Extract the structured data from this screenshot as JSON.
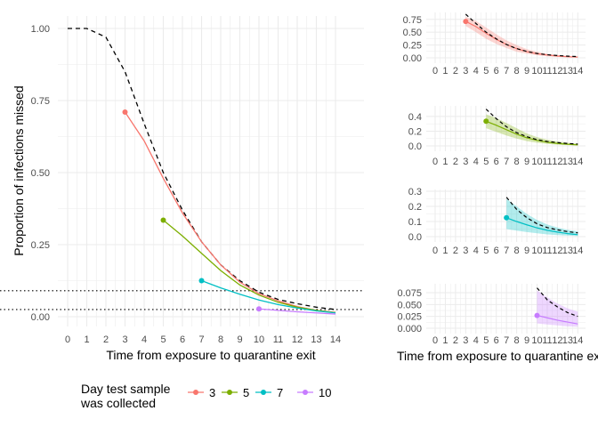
{
  "chart_data": [
    {
      "type": "line",
      "panel": "main",
      "xlabel": "Time from exposure to quarantine exit",
      "ylabel": "Proportion of infections missed",
      "xlim": [
        0,
        14
      ],
      "ylim": [
        0,
        1
      ],
      "x_ticks": [
        0,
        1,
        2,
        3,
        4,
        5,
        6,
        7,
        8,
        9,
        10,
        11,
        12,
        13,
        14
      ],
      "y_ticks": [
        0,
        0.25,
        0.5,
        0.75,
        1.0
      ],
      "y_tick_labels": [
        "0.00",
        "0.25",
        "0.50",
        "0.75",
        "1.00"
      ],
      "grid": true,
      "baseline": {
        "style": "dashed",
        "x": [
          0,
          1,
          2,
          3,
          4,
          5,
          6,
          7,
          8,
          9,
          10,
          11,
          12,
          13,
          14
        ],
        "y": [
          1.0,
          1.0,
          0.97,
          0.85,
          0.67,
          0.5,
          0.37,
          0.26,
          0.18,
          0.125,
          0.085,
          0.06,
          0.045,
          0.033,
          0.025
        ]
      },
      "reference_lines": [
        0.09,
        0.025
      ],
      "series": [
        {
          "name": "3",
          "color": "#F8766D",
          "x": [
            3,
            4,
            5,
            6,
            7,
            8,
            9,
            10,
            11,
            12,
            13,
            14
          ],
          "y": [
            0.71,
            0.61,
            0.48,
            0.36,
            0.26,
            0.18,
            0.12,
            0.08,
            0.055,
            0.035,
            0.022,
            0.015
          ]
        },
        {
          "name": "5",
          "color": "#7CAE00",
          "x": [
            5,
            6,
            7,
            8,
            9,
            10,
            11,
            12,
            13,
            14
          ],
          "y": [
            0.335,
            0.28,
            0.22,
            0.16,
            0.11,
            0.075,
            0.05,
            0.033,
            0.022,
            0.014
          ]
        },
        {
          "name": "7",
          "color": "#00BFC4",
          "x": [
            7,
            8,
            9,
            10,
            11,
            12,
            13,
            14
          ],
          "y": [
            0.125,
            0.1,
            0.078,
            0.058,
            0.042,
            0.03,
            0.02,
            0.013
          ]
        },
        {
          "name": "10",
          "color": "#C77CFF",
          "x": [
            10,
            11,
            12,
            13,
            14
          ],
          "y": [
            0.027,
            0.022,
            0.017,
            0.013,
            0.009
          ]
        }
      ],
      "legend": {
        "title": "Day test sample was collected",
        "title_lines": [
          "Day test sample",
          "was collected"
        ],
        "placement": "bottom"
      }
    },
    {
      "type": "area",
      "panel": "small-1",
      "series_name": "3",
      "color": "#F8766D",
      "xlim": [
        0,
        14
      ],
      "ylim": [
        0,
        0.85
      ],
      "x_ticks": [
        0,
        1,
        2,
        3,
        4,
        5,
        6,
        7,
        8,
        9,
        10,
        11,
        12,
        13,
        14
      ],
      "y_ticks": [
        0,
        0.25,
        0.5,
        0.75
      ],
      "y_tick_labels": [
        "0.00",
        "0.25",
        "0.50",
        "0.75"
      ],
      "x": [
        3,
        4,
        5,
        6,
        7,
        8,
        9,
        10,
        11,
        12,
        13,
        14
      ],
      "y": [
        0.71,
        0.61,
        0.48,
        0.36,
        0.26,
        0.18,
        0.12,
        0.08,
        0.055,
        0.035,
        0.022,
        0.015
      ],
      "lower": [
        0.62,
        0.5,
        0.37,
        0.27,
        0.19,
        0.12,
        0.08,
        0.05,
        0.03,
        0.018,
        0.01,
        0.006
      ],
      "upper": [
        0.8,
        0.72,
        0.59,
        0.46,
        0.34,
        0.25,
        0.17,
        0.12,
        0.08,
        0.055,
        0.037,
        0.026
      ],
      "baseline_x": [
        3,
        4,
        5,
        6,
        7,
        8,
        9,
        10,
        11,
        12,
        13,
        14
      ],
      "baseline_y": [
        0.85,
        0.67,
        0.5,
        0.37,
        0.26,
        0.18,
        0.125,
        0.085,
        0.06,
        0.045,
        0.033,
        0.025
      ]
    },
    {
      "type": "area",
      "panel": "small-2",
      "series_name": "5",
      "color": "#7CAE00",
      "xlim": [
        0,
        14
      ],
      "ylim": [
        0,
        0.52
      ],
      "x_ticks": [
        0,
        1,
        2,
        3,
        4,
        5,
        6,
        7,
        8,
        9,
        10,
        11,
        12,
        13,
        14
      ],
      "y_ticks": [
        0,
        0.2,
        0.4
      ],
      "y_tick_labels": [
        "0.0",
        "0.2",
        "0.4"
      ],
      "x": [
        5,
        6,
        7,
        8,
        9,
        10,
        11,
        12,
        13,
        14
      ],
      "y": [
        0.335,
        0.28,
        0.22,
        0.16,
        0.11,
        0.075,
        0.05,
        0.033,
        0.022,
        0.014
      ],
      "lower": [
        0.24,
        0.19,
        0.14,
        0.1,
        0.065,
        0.042,
        0.027,
        0.016,
        0.01,
        0.006
      ],
      "upper": [
        0.43,
        0.38,
        0.31,
        0.24,
        0.17,
        0.12,
        0.085,
        0.06,
        0.042,
        0.03
      ],
      "baseline_x": [
        5,
        6,
        7,
        8,
        9,
        10,
        11,
        12,
        13,
        14
      ],
      "baseline_y": [
        0.5,
        0.37,
        0.26,
        0.18,
        0.125,
        0.085,
        0.06,
        0.045,
        0.033,
        0.025
      ]
    },
    {
      "type": "area",
      "panel": "small-3",
      "series_name": "7",
      "color": "#00BFC4",
      "xlim": [
        0,
        14
      ],
      "ylim": [
        0,
        0.3
      ],
      "x_ticks": [
        0,
        1,
        2,
        3,
        4,
        5,
        6,
        7,
        8,
        9,
        10,
        11,
        12,
        13,
        14
      ],
      "y_ticks": [
        0,
        0.1,
        0.2,
        0.3
      ],
      "y_tick_labels": [
        "0.0",
        "0.1",
        "0.2",
        "0.3"
      ],
      "x": [
        7,
        8,
        9,
        10,
        11,
        12,
        13,
        14
      ],
      "y": [
        0.125,
        0.1,
        0.078,
        0.058,
        0.042,
        0.03,
        0.02,
        0.013
      ],
      "lower": [
        0.05,
        0.04,
        0.03,
        0.022,
        0.015,
        0.01,
        0.007,
        0.004
      ],
      "upper": [
        0.25,
        0.2,
        0.15,
        0.11,
        0.08,
        0.06,
        0.045,
        0.035
      ],
      "baseline_x": [
        7,
        8,
        9,
        10,
        11,
        12,
        13,
        14
      ],
      "baseline_y": [
        0.26,
        0.18,
        0.125,
        0.085,
        0.06,
        0.045,
        0.033,
        0.025
      ]
    },
    {
      "type": "area",
      "panel": "small-4",
      "series_name": "10",
      "color": "#C77CFF",
      "xlim": [
        0,
        14
      ],
      "ylim": [
        0,
        0.09
      ],
      "x_ticks": [
        0,
        1,
        2,
        3,
        4,
        5,
        6,
        7,
        8,
        9,
        10,
        11,
        12,
        13,
        14
      ],
      "y_ticks": [
        0,
        0.025,
        0.05,
        0.075
      ],
      "y_tick_labels": [
        "0.000",
        "0.025",
        "0.050",
        "0.075"
      ],
      "xlabel": "Time from exposure to quarantine exit",
      "x": [
        10,
        11,
        12,
        13,
        14
      ],
      "y": [
        0.027,
        0.022,
        0.017,
        0.013,
        0.009
      ],
      "lower": [
        0.01,
        0.008,
        0.006,
        0.004,
        0.003
      ],
      "upper": [
        0.08,
        0.065,
        0.052,
        0.042,
        0.035
      ],
      "baseline_x": [
        10,
        11,
        12,
        13,
        14
      ],
      "baseline_y": [
        0.085,
        0.06,
        0.045,
        0.033,
        0.025
      ]
    }
  ]
}
